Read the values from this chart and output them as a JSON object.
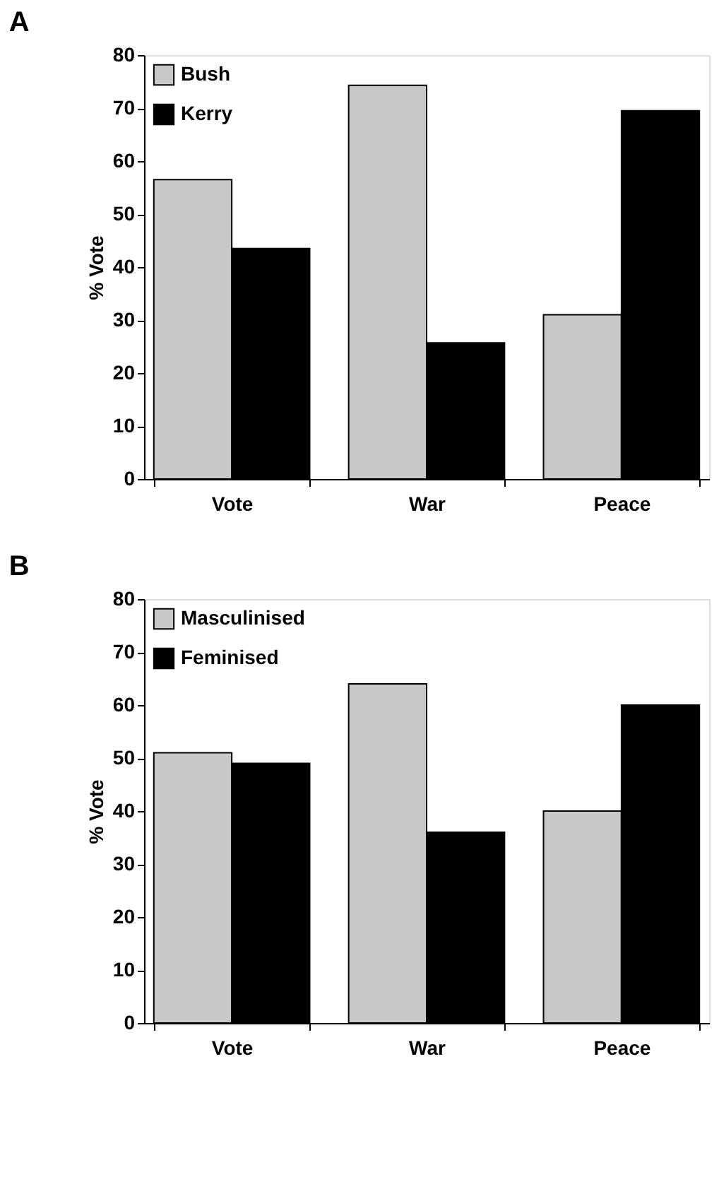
{
  "chart_data": [
    {
      "type": "bar",
      "title": "A",
      "ylabel": "% Vote",
      "categories": [
        "Vote",
        "War",
        "Peace"
      ],
      "series": [
        {
          "name": "Bush",
          "color": "#c8c8c8",
          "values": [
            56.5,
            74.3,
            31
          ]
        },
        {
          "name": "Kerry",
          "color": "#000000",
          "values": [
            43.5,
            25.7,
            69.5
          ]
        }
      ],
      "ylim": [
        0,
        80
      ],
      "yticks": [
        0,
        10,
        20,
        30,
        40,
        50,
        60,
        70,
        80
      ],
      "grid": false,
      "legend": "top left"
    },
    {
      "type": "bar",
      "title": "B",
      "ylabel": "% Vote",
      "categories": [
        "Vote",
        "War",
        "Peace"
      ],
      "series": [
        {
          "name": "Masculinised",
          "color": "#c8c8c8",
          "values": [
            51,
            64,
            40
          ]
        },
        {
          "name": "Feminised",
          "color": "#000000",
          "values": [
            49,
            36,
            60
          ]
        }
      ],
      "ylim": [
        0,
        80
      ],
      "yticks": [
        0,
        10,
        20,
        30,
        40,
        50,
        60,
        70,
        80
      ],
      "grid": false,
      "legend": "top left"
    }
  ]
}
